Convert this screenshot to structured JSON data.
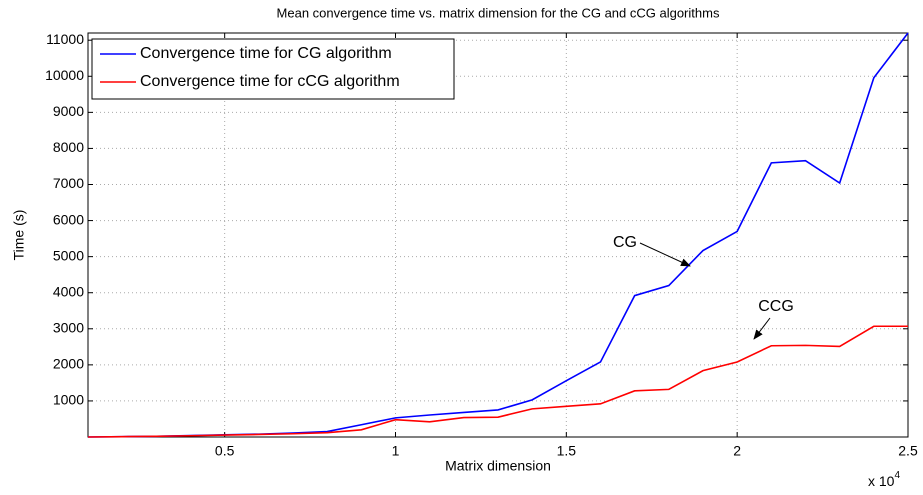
{
  "chart_data": {
    "type": "line",
    "title": "Mean convergence time vs. matrix dimension for the CG and cCG algorithms",
    "x_label": "Matrix dimension",
    "y_label": "Time (s)",
    "x_exponent": "x 10",
    "x_exponent_power": "4",
    "x": [
      1000,
      2000,
      3000,
      4000,
      5000,
      6000,
      7000,
      8000,
      9000,
      10000,
      11000,
      12000,
      13000,
      14000,
      15000,
      16000,
      17000,
      18000,
      19000,
      20000,
      21000,
      22000,
      23000,
      24000,
      25000
    ],
    "series": [
      {
        "name": "Convergence time for CG algorithm",
        "color": "#0000ff",
        "values": [
          0,
          10,
          20,
          40,
          60,
          80,
          110,
          150,
          340,
          530,
          610,
          680,
          750,
          1030,
          1560,
          2080,
          3920,
          4200,
          5170,
          5700,
          7600,
          7660,
          7040,
          9960,
          11200
        ]
      },
      {
        "name": "Convergence time for cCG algorithm",
        "color": "#ff0000",
        "values": [
          0,
          10,
          20,
          35,
          55,
          70,
          90,
          120,
          200,
          480,
          420,
          540,
          550,
          780,
          850,
          920,
          1280,
          1320,
          1840,
          2080,
          2530,
          2540,
          2510,
          3070,
          3070
        ]
      }
    ],
    "xlim": [
      1000,
      25000
    ],
    "ylim": [
      0,
      11200
    ],
    "xticks": [
      {
        "value": 5000,
        "label": "0.5"
      },
      {
        "value": 10000,
        "label": "1"
      },
      {
        "value": 15000,
        "label": "1.5"
      },
      {
        "value": 20000,
        "label": "2"
      },
      {
        "value": 25000,
        "label": "2.5"
      }
    ],
    "yticks": [
      1000,
      2000,
      3000,
      4000,
      5000,
      6000,
      7000,
      8000,
      9000,
      10000,
      11000
    ],
    "grid": true,
    "legend_position": "upper left",
    "annotations": [
      "CG",
      "CCG"
    ]
  }
}
